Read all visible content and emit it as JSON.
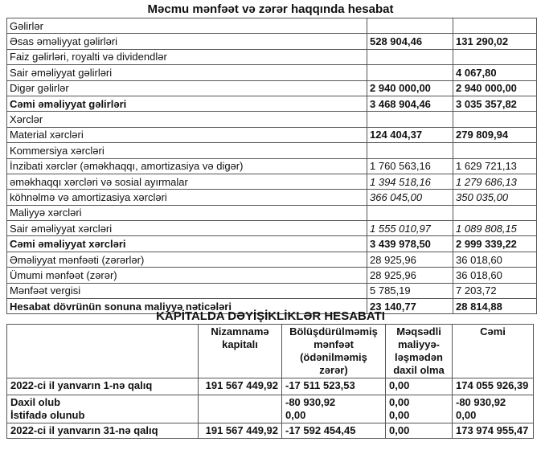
{
  "income_statement": {
    "title": "Məcmu mənfəət və zərər haqqında hesabat",
    "rows": [
      {
        "label": "Gəlirlər",
        "v1": "",
        "v2": "",
        "label_bold": false,
        "value_style": ""
      },
      {
        "label": "Əsas əməliyyat gəlirləri",
        "v1": "528 904,46",
        "v2": "131 290,02",
        "label_bold": false,
        "value_style": "b"
      },
      {
        "label": "Faiz gəlirləri, royalti və dividendlər",
        "v1": "",
        "v2": "",
        "label_bold": false,
        "value_style": ""
      },
      {
        "label": "Sair əməliyyat gəlirləri",
        "v1": "",
        "v2": "4 067,80",
        "label_bold": false,
        "value_style": "b"
      },
      {
        "label": "Digər gəlirlər",
        "v1": "2 940 000,00",
        "v2": "2 940 000,00",
        "label_bold": false,
        "value_style": "b"
      },
      {
        "label": "Cəmi əməliyyat gəlirləri",
        "v1": "3 468 904,46",
        "v2": "3 035 357,82",
        "label_bold": true,
        "value_style": "b"
      },
      {
        "label": "Xərclər",
        "v1": "",
        "v2": "",
        "label_bold": false,
        "value_style": ""
      },
      {
        "label": "Material xərcləri",
        "v1": "124 404,37",
        "v2": "279 809,94",
        "label_bold": false,
        "value_style": "b"
      },
      {
        "label": "Kommersiya xərcləri",
        "v1": "",
        "v2": "",
        "label_bold": false,
        "value_style": ""
      },
      {
        "label": "İnzibati xərclər (əməkhaqqı, amortizasiya və digər)",
        "v1": "1 760 563,16",
        "v2": "1 629 721,13",
        "label_bold": false,
        "value_style": ""
      },
      {
        "label": "əməkhaqqı xərcləri və sosial ayırmalar",
        "v1": "1 394 518,16",
        "v2": "1 279 686,13",
        "label_bold": false,
        "value_style": "i"
      },
      {
        "label": "köhnəlmə və amortizasiya xərcləri",
        "v1": "366 045,00",
        "v2": "350 035,00",
        "label_bold": false,
        "value_style": "i"
      },
      {
        "label": "Maliyyə xərcləri",
        "v1": "",
        "v2": "",
        "label_bold": false,
        "value_style": ""
      },
      {
        "label": "Sair əməliyyat xərcləri",
        "v1": "1 555 010,97",
        "v2": "1 089 808,15",
        "label_bold": false,
        "value_style": "i"
      },
      {
        "label": "Cəmi əməliyyat xərcləri",
        "v1": "3 439 978,50",
        "v2": "2 999 339,22",
        "label_bold": true,
        "value_style": "b"
      },
      {
        "label": "Əməliyyat mənfəəti (zərərlər)",
        "v1": "28 925,96",
        "v2": "36 018,60",
        "label_bold": false,
        "value_style": ""
      },
      {
        "label": "Ümumi mənfəət (zərər)",
        "v1": "28 925,96",
        "v2": "36 018,60",
        "label_bold": false,
        "value_style": ""
      },
      {
        "label": "Mənfəət vergisi",
        "v1": "5 785,19",
        "v2": "7 203,72",
        "label_bold": false,
        "value_style": ""
      },
      {
        "label": "Hesabat dövrünün sonuna maliyyə nəticələri",
        "v1": "23 140,77",
        "v2": "28 814,88",
        "label_bold": true,
        "value_style": "b"
      }
    ]
  },
  "equity_statement": {
    "title": "KAPİTALDA DƏYİŞİKLİKLƏR HESABATI",
    "headers": [
      "",
      "Nizamnamə kapitalı",
      "Bölüşdürülməmiş mənfəət (ödənilməmiş zərər)",
      "Məqsədli maliyyə-ləşmədən daxil olma",
      "Cəmi"
    ],
    "rows": [
      {
        "label": "2022-ci il yanvarın 1-nə qalıq",
        "c1": "191 567 449,92",
        "c2": "-17 511 523,53",
        "c3": "0,00",
        "c4": "174 055 926,39"
      },
      {
        "label": "Daxil olub\nİstifadə olunub",
        "c1": "",
        "c2": "-80 930,92\n0,00",
        "c3": "0,00\n0,00",
        "c4": "-80 930,92\n0,00"
      },
      {
        "label": "2022-ci il yanvarın 31-nə qalıq",
        "c1": "191 567 449,92",
        "c2": "-17 592 454,45",
        "c3": "0,00",
        "c4": "173 974 955,47"
      }
    ]
  }
}
